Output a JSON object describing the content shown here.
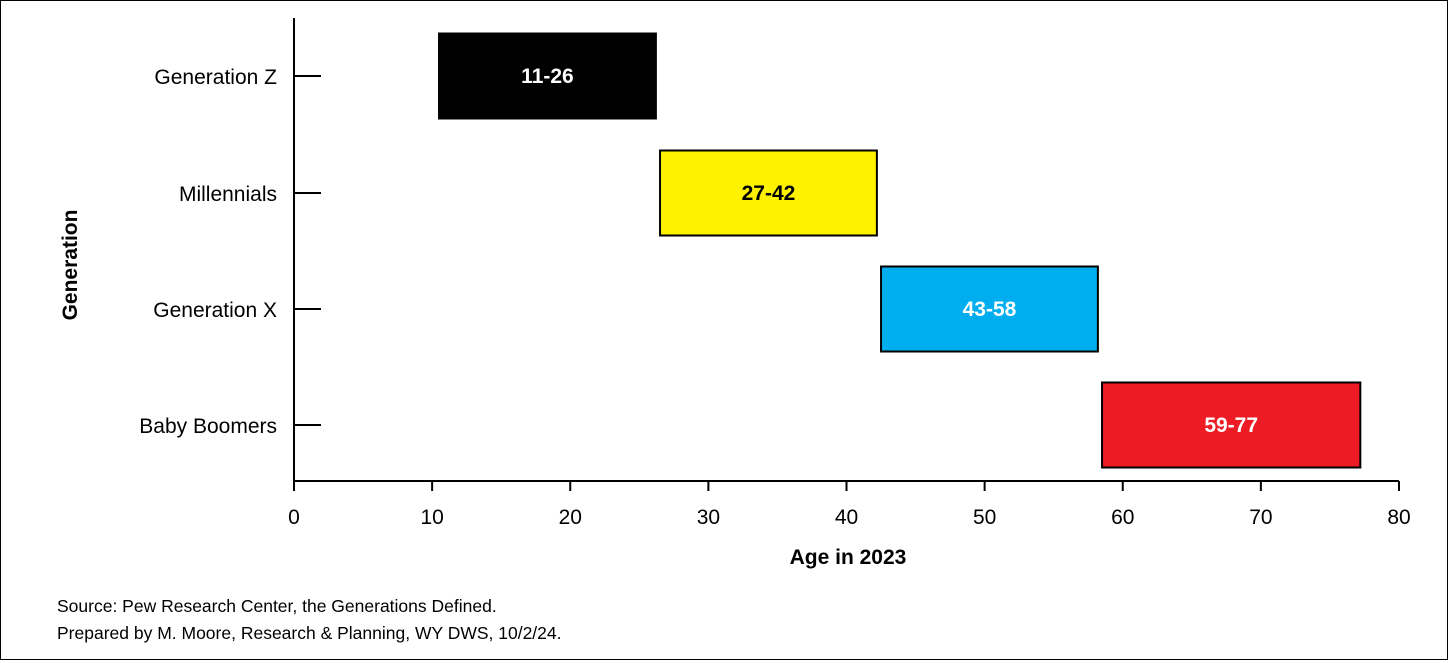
{
  "chart_data": {
    "type": "bar",
    "orientation": "horizontal",
    "style": "floating-range",
    "categories": [
      "Generation Z",
      "Millennials",
      "Generation X",
      "Baby Boomers"
    ],
    "ranges": [
      {
        "category": "Generation Z",
        "start": 11,
        "end": 26,
        "label": "11-26",
        "color": "#000000",
        "label_color": "#ffffff"
      },
      {
        "category": "Millennials",
        "start": 27,
        "end": 42,
        "label": "27-42",
        "color": "#fff200",
        "label_color": "#000000"
      },
      {
        "category": "Generation X",
        "start": 43,
        "end": 58,
        "label": "43-58",
        "color": "#00aeef",
        "label_color": "#ffffff"
      },
      {
        "category": "Baby Boomers",
        "start": 59,
        "end": 77,
        "label": "59-77",
        "color": "#ed1c24",
        "label_color": "#ffffff"
      }
    ],
    "xlabel": "Age in 2023",
    "ylabel": "Generation",
    "xlim": [
      0,
      80
    ],
    "xticks": [
      0,
      10,
      20,
      30,
      40,
      50,
      60,
      70,
      80
    ],
    "grid": false,
    "legend": "none"
  },
  "footnote": {
    "source": "Source: Pew Research Center, the Generations Defined.",
    "prepared": "Prepared by M. Moore, Research & Planning, WY DWS, 10/2/24."
  }
}
